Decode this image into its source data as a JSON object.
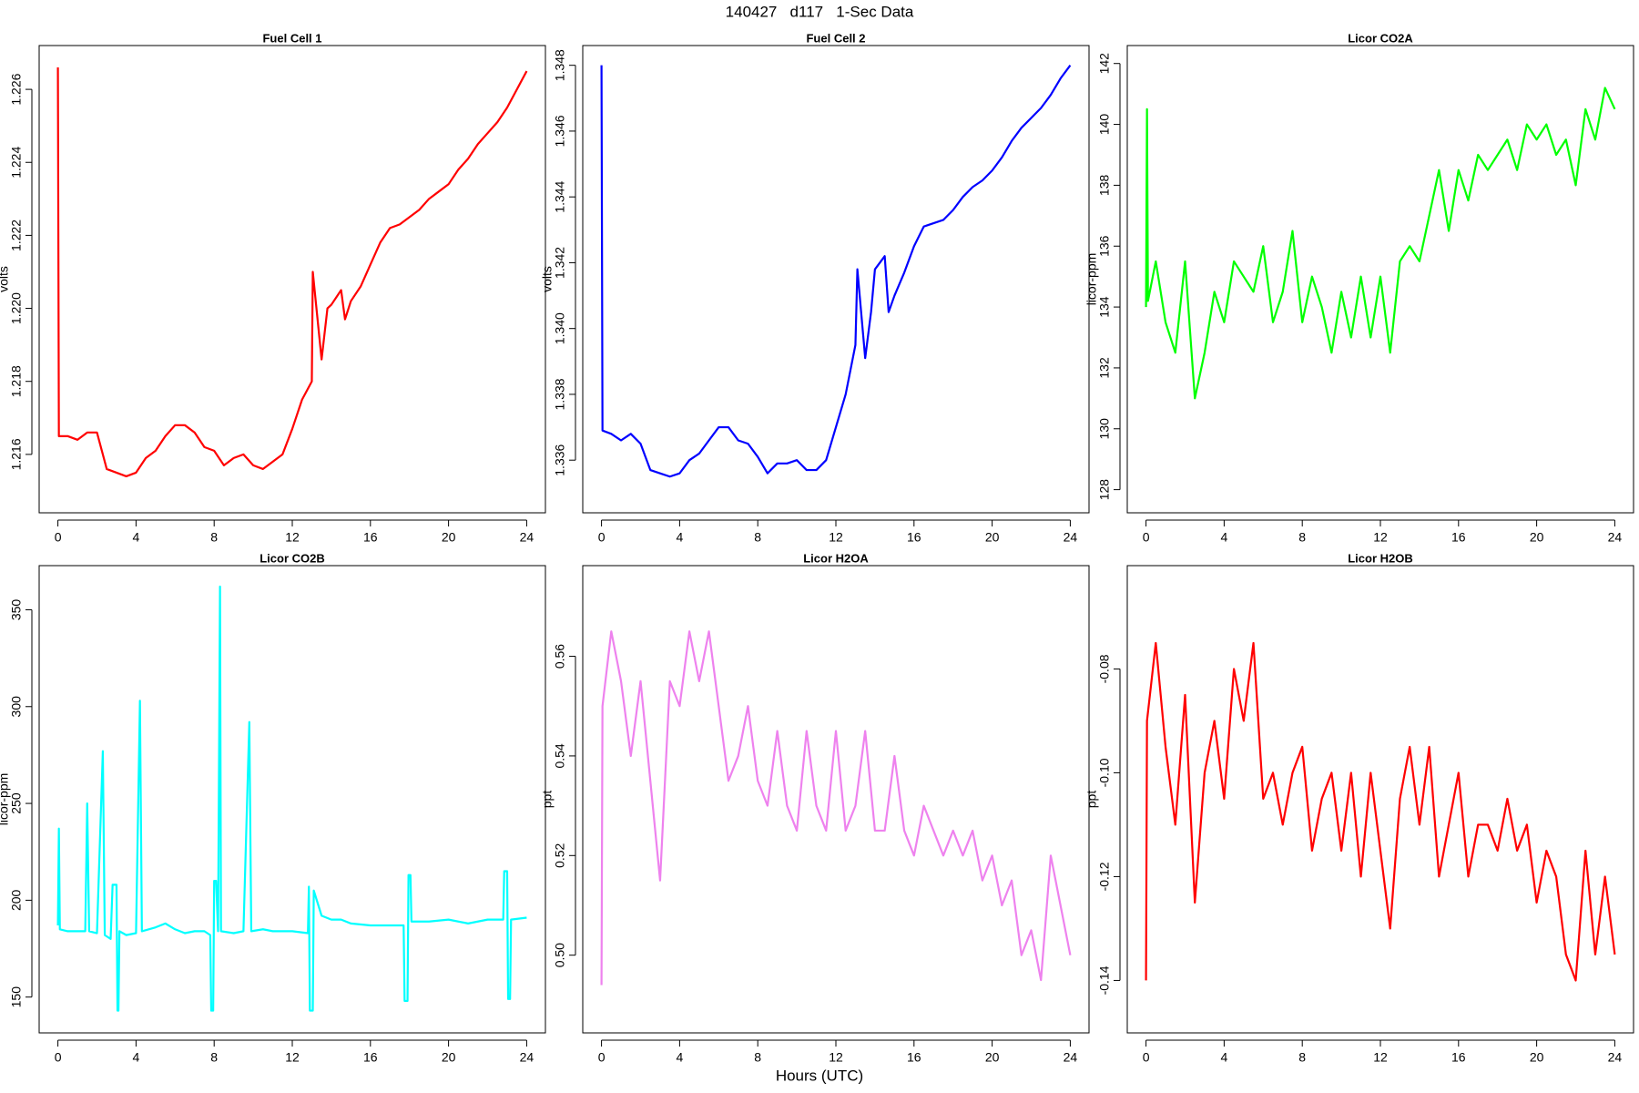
{
  "title": "140427   d117   1-Sec Data",
  "xlabel": "Hours (UTC)",
  "chart_data": [
    {
      "type": "line",
      "title": "Fuel Cell 1",
      "ylabel": "volts",
      "color": "#ff0000",
      "xlim": [
        -0.96,
        24.96
      ],
      "xticks": [
        0,
        4,
        8,
        12,
        16,
        20,
        24
      ],
      "ylim": [
        1.2144,
        1.2272
      ],
      "yticks": [
        1.216,
        1.218,
        {
          "value": 1.22,
          "label": "1.220"
        },
        1.222,
        1.224,
        1.226
      ],
      "x": [
        0,
        0.05,
        0.5,
        1,
        1.5,
        2,
        2.5,
        3,
        3.5,
        4,
        4.5,
        5,
        5.5,
        6,
        6.5,
        7,
        7.5,
        8,
        8.5,
        9,
        9.5,
        10,
        10.5,
        11,
        11.5,
        12,
        12.5,
        13,
        13.05,
        13.5,
        13.8,
        14,
        14.5,
        14.7,
        15,
        15.5,
        16,
        16.5,
        17,
        17.5,
        18,
        18.5,
        19,
        19.5,
        20,
        20.5,
        21,
        21.5,
        22,
        22.5,
        23,
        23.5,
        24
      ],
      "values": [
        1.2266,
        1.2165,
        1.2165,
        1.2164,
        1.2166,
        1.2166,
        1.2156,
        1.2155,
        1.2154,
        1.2155,
        1.2159,
        1.2161,
        1.2165,
        1.2168,
        1.2168,
        1.2166,
        1.2162,
        1.2161,
        1.2157,
        1.2159,
        1.216,
        1.2157,
        1.2156,
        1.2158,
        1.216,
        1.2167,
        1.2175,
        1.218,
        1.221,
        1.2186,
        1.22,
        1.2201,
        1.2205,
        1.2197,
        1.2202,
        1.2206,
        1.2212,
        1.2218,
        1.2222,
        1.2223,
        1.2225,
        1.2227,
        1.223,
        1.2232,
        1.2234,
        1.2238,
        1.2241,
        1.2245,
        1.2248,
        1.2251,
        1.2255,
        1.226,
        1.2265
      ]
    },
    {
      "type": "line",
      "title": "Fuel Cell 2",
      "ylabel": "volts",
      "color": "#0000ff",
      "xlim": [
        -0.96,
        24.96
      ],
      "xticks": [
        0,
        4,
        8,
        12,
        16,
        20,
        24
      ],
      "ylim": [
        1.3344,
        1.3486
      ],
      "yticks": [
        1.336,
        1.338,
        {
          "value": 1.34,
          "label": "1.340"
        },
        1.342,
        1.344,
        1.346,
        1.348
      ],
      "x": [
        0,
        0.05,
        0.5,
        1,
        1.5,
        2,
        2.5,
        3,
        3.5,
        4,
        4.5,
        5,
        5.5,
        6,
        6.5,
        7,
        7.5,
        8,
        8.5,
        9,
        9.5,
        10,
        10.5,
        11,
        11.5,
        12,
        12.5,
        13,
        13.1,
        13.5,
        13.8,
        14,
        14.5,
        14.7,
        15,
        15.5,
        16,
        16.5,
        17,
        17.5,
        18,
        18.5,
        19,
        19.5,
        20,
        20.5,
        21,
        21.5,
        22,
        22.5,
        23,
        23.5,
        24
      ],
      "values": [
        1.348,
        1.3369,
        1.3368,
        1.3366,
        1.3368,
        1.3365,
        1.3357,
        1.3356,
        1.3355,
        1.3356,
        1.336,
        1.3362,
        1.3366,
        1.337,
        1.337,
        1.3366,
        1.3365,
        1.3361,
        1.3356,
        1.3359,
        1.3359,
        1.336,
        1.3357,
        1.3357,
        1.336,
        1.337,
        1.338,
        1.3395,
        1.3418,
        1.3391,
        1.3405,
        1.3418,
        1.3422,
        1.3405,
        1.341,
        1.3417,
        1.3425,
        1.3431,
        1.3432,
        1.3433,
        1.3436,
        1.344,
        1.3443,
        1.3445,
        1.3448,
        1.3452,
        1.3457,
        1.3461,
        1.3464,
        1.3467,
        1.3471,
        1.3476,
        1.348
      ]
    },
    {
      "type": "line",
      "title": "Licor CO2A",
      "ylabel": "licor-ppm",
      "color": "#00ff00",
      "xlim": [
        -0.96,
        24.96
      ],
      "xticks": [
        0,
        4,
        8,
        12,
        16,
        20,
        24
      ],
      "ylim": [
        127.24,
        142.59
      ],
      "yticks": [
        128,
        130,
        132,
        134,
        136,
        138,
        140,
        142
      ],
      "x": [
        0,
        0.05,
        0.1,
        0.5,
        1,
        1.5,
        2,
        2.5,
        3,
        3.5,
        4,
        4.5,
        5,
        5.5,
        6,
        6.5,
        7,
        7.5,
        8,
        8.5,
        9,
        9.5,
        10,
        10.5,
        11,
        11.5,
        12,
        12.5,
        13,
        13.5,
        14,
        14.5,
        15,
        15.5,
        16,
        16.5,
        17,
        17.5,
        18,
        18.5,
        19,
        19.5,
        20,
        20.5,
        21,
        21.5,
        22,
        22.5,
        23,
        23.5,
        24
      ],
      "values": [
        134,
        140.5,
        134.2,
        135.5,
        133.5,
        132.5,
        135.5,
        131,
        132.5,
        134.5,
        133.5,
        135.5,
        135,
        134.5,
        136,
        133.5,
        134.5,
        136.5,
        133.5,
        135,
        134,
        132.5,
        134.5,
        133,
        135,
        133,
        135,
        132.5,
        135.5,
        136,
        135.5,
        137,
        138.5,
        136.5,
        138.5,
        137.5,
        139,
        138.5,
        139,
        139.5,
        138.5,
        140,
        139.5,
        140,
        139,
        139.5,
        138,
        140.5,
        139.5,
        141.2,
        140.5
      ]
    },
    {
      "type": "line",
      "title": "Licor CO2B",
      "ylabel": "licor-ppm",
      "color": "#00ffff",
      "xlim": [
        -0.96,
        24.96
      ],
      "xticks": [
        0,
        4,
        8,
        12,
        16,
        20,
        24
      ],
      "ylim": [
        131.5,
        372.8
      ],
      "yticks": [
        150,
        200,
        250,
        300,
        350
      ],
      "x": [
        0,
        0.05,
        0.1,
        0.5,
        1,
        1.4,
        1.5,
        1.6,
        2,
        2.3,
        2.4,
        2.7,
        2.8,
        3,
        3.05,
        3.1,
        3.15,
        3.5,
        4,
        4.2,
        4.3,
        5,
        5.5,
        6,
        6.5,
        7,
        7.5,
        7.8,
        7.85,
        7.95,
        8,
        8.1,
        8.2,
        8.3,
        8.35,
        9,
        9.5,
        9.8,
        9.9,
        10.5,
        11,
        11.5,
        12,
        12.8,
        12.85,
        12.9,
        13.05,
        13.1,
        13.5,
        14,
        14.5,
        15,
        16,
        17,
        17.7,
        17.75,
        17.9,
        17.95,
        18.05,
        18.1,
        19,
        20,
        21,
        22,
        22.8,
        22.85,
        23,
        23.05,
        23.15,
        23.2,
        24
      ],
      "values": [
        187,
        237,
        185,
        184,
        184,
        184,
        250,
        184,
        183,
        277,
        182,
        180,
        208,
        208,
        143,
        143,
        184,
        182,
        183,
        303,
        184,
        186,
        188,
        185,
        183,
        184,
        184,
        182,
        143,
        143,
        210,
        210,
        184,
        362,
        184,
        183,
        184,
        292,
        184,
        185,
        184,
        184,
        184,
        183,
        207,
        143,
        143,
        205,
        192,
        190,
        190,
        188,
        187,
        187,
        187,
        148,
        148,
        213,
        213,
        189,
        189,
        190,
        188,
        190,
        190,
        215,
        215,
        149,
        149,
        190,
        191
      ]
    },
    {
      "type": "line",
      "title": "Licor H2OA",
      "ylabel": "ppt",
      "color": "#ee82ee",
      "xlim": [
        -0.96,
        24.96
      ],
      "xticks": [
        0,
        4,
        8,
        12,
        16,
        20,
        24
      ],
      "ylim": [
        0.4844,
        0.5782
      ],
      "yticks": [
        {
          "value": 0.5,
          "label": "0.50"
        },
        0.52,
        0.54,
        0.56
      ],
      "x": [
        0,
        0.05,
        0.5,
        1,
        1.5,
        2,
        2.5,
        3,
        3.5,
        4,
        4.5,
        5,
        5.5,
        6,
        6.5,
        7,
        7.5,
        8,
        8.5,
        9,
        9.5,
        10,
        10.5,
        11,
        11.5,
        12,
        12.5,
        13,
        13.5,
        14,
        14.5,
        15,
        15.5,
        16,
        16.5,
        17,
        17.5,
        18,
        18.5,
        19,
        19.5,
        20,
        20.5,
        21,
        21.5,
        22,
        22.5,
        23,
        23.5,
        24
      ],
      "values": [
        0.494,
        0.55,
        0.565,
        0.555,
        0.54,
        0.555,
        0.535,
        0.515,
        0.555,
        0.55,
        0.565,
        0.555,
        0.565,
        0.55,
        0.535,
        0.54,
        0.55,
        0.535,
        0.53,
        0.545,
        0.53,
        0.525,
        0.545,
        0.53,
        0.525,
        0.545,
        0.525,
        0.53,
        0.545,
        0.525,
        0.525,
        0.54,
        0.525,
        0.52,
        0.53,
        0.525,
        0.52,
        0.525,
        0.52,
        0.525,
        0.515,
        0.52,
        0.51,
        0.515,
        0.5,
        0.505,
        0.495,
        0.52,
        0.51,
        0.5
      ]
    },
    {
      "type": "line",
      "title": "Licor H2OB",
      "ylabel": "ppt",
      "color": "#ff0000",
      "xlim": [
        -0.96,
        24.96
      ],
      "xticks": [
        0,
        4,
        8,
        12,
        16,
        20,
        24
      ],
      "ylim": [
        -0.1501,
        -0.0601
      ],
      "yticks": [
        -0.08,
        {
          "value": -0.1,
          "label": "-0.10"
        },
        -0.12,
        -0.14
      ],
      "x": [
        0,
        0.05,
        0.5,
        1,
        1.5,
        2,
        2.5,
        3,
        3.5,
        4,
        4.5,
        5,
        5.5,
        6,
        6.5,
        7,
        7.5,
        8,
        8.5,
        9,
        9.5,
        10,
        10.5,
        11,
        11.5,
        12,
        12.5,
        13,
        13.5,
        14,
        14.5,
        15,
        15.5,
        16,
        16.5,
        17,
        17.5,
        18,
        18.5,
        19,
        19.5,
        20,
        20.5,
        21,
        21.5,
        22,
        22.5,
        23,
        23.5,
        24
      ],
      "values": [
        -0.14,
        -0.09,
        -0.075,
        -0.095,
        -0.11,
        -0.085,
        -0.125,
        -0.1,
        -0.09,
        -0.105,
        -0.08,
        -0.09,
        -0.075,
        -0.105,
        -0.1,
        -0.11,
        -0.1,
        -0.095,
        -0.115,
        -0.105,
        -0.1,
        -0.115,
        -0.1,
        -0.12,
        -0.1,
        -0.115,
        -0.13,
        -0.105,
        -0.095,
        -0.11,
        -0.095,
        -0.12,
        -0.11,
        -0.1,
        -0.12,
        -0.11,
        -0.11,
        -0.115,
        -0.105,
        -0.115,
        -0.11,
        -0.125,
        -0.115,
        -0.12,
        -0.135,
        -0.14,
        -0.115,
        -0.135,
        -0.12,
        -0.135
      ]
    }
  ]
}
